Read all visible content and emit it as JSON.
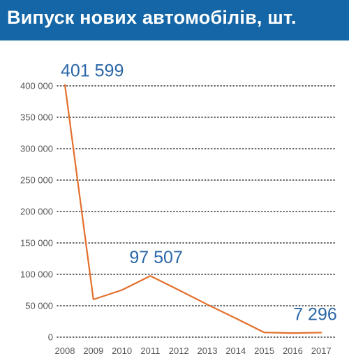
{
  "title": "Випуск нових автомобілів, шт.",
  "colors": {
    "title_bg": "#1466a6",
    "line": "#e36f2c",
    "data_label": "#2a67a8",
    "grid": "#333333"
  },
  "chart_data": {
    "type": "line",
    "title": "Випуск нових автомобілів, шт.",
    "xlabel": "",
    "ylabel": "",
    "ylim": [
      0,
      400000
    ],
    "grid": "horizontal dotted",
    "x": [
      "2008",
      "2009",
      "2010",
      "2011",
      "2012",
      "2013",
      "2014",
      "2015",
      "2016",
      "2017"
    ],
    "y_ticks": [
      0,
      50000,
      100000,
      150000,
      200000,
      250000,
      300000,
      350000,
      400000
    ],
    "y_tick_labels": [
      "0",
      "50 000",
      "100 000",
      "150 000",
      "200 000",
      "250 000",
      "300 000",
      "350 000",
      "400 000"
    ],
    "series": [
      {
        "values": [
          401599,
          60000,
          75000,
          97507,
          75000,
          52000,
          30000,
          7500,
          6500,
          7296
        ]
      }
    ],
    "annotations": [
      {
        "index": 0,
        "text": "401 599"
      },
      {
        "index": 3,
        "text": "97 507"
      },
      {
        "index": 9,
        "text": "7 296"
      }
    ]
  }
}
